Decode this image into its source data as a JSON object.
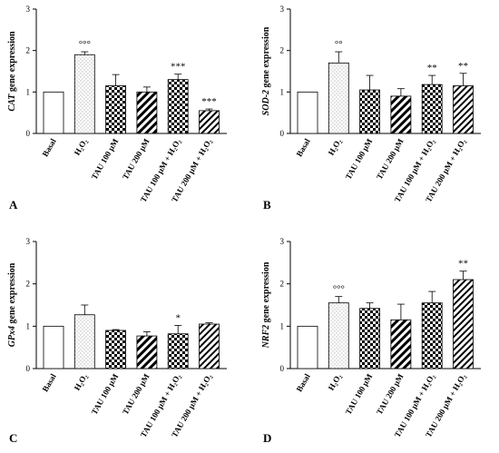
{
  "panels": [
    {
      "label": "A",
      "ylabel_gene": "CAT",
      "ylabel_rest": " gene expression",
      "significance": [
        "",
        "°°°",
        "",
        "",
        "***",
        "***"
      ]
    },
    {
      "label": "B",
      "ylabel_gene": "SOD-2",
      "ylabel_rest": " gene expression",
      "significance": [
        "",
        "°°",
        "",
        "",
        "**",
        "**"
      ]
    },
    {
      "label": "C",
      "ylabel_gene": "GPx4",
      "ylabel_rest": " gene expression",
      "significance": [
        "",
        "",
        "",
        "",
        "*",
        ""
      ]
    },
    {
      "label": "D",
      "ylabel_gene": "NRF2",
      "ylabel_rest": " gene expression",
      "significance": [
        "",
        "°°°",
        "",
        "",
        "",
        "**"
      ]
    }
  ],
  "chart_data": [
    {
      "type": "bar",
      "categories": [
        "Basal",
        "H₂O₂",
        "TAU 100 µM",
        "TAU 200 µM",
        "TAU 100 µM + H₂O₂",
        "TAU 200 µM + H₂O₂"
      ],
      "values": [
        1.0,
        1.9,
        1.15,
        1.0,
        1.3,
        0.55
      ],
      "errors": [
        0,
        0.07,
        0.27,
        0.12,
        0.13,
        0.04
      ],
      "ylabel": "CAT gene expression",
      "ylim": [
        0,
        3
      ],
      "yticks": [
        0,
        1,
        2,
        3
      ],
      "grid": false
    },
    {
      "type": "bar",
      "categories": [
        "Basal",
        "H₂O₂",
        "TAU 100 µM",
        "TAU 200 µM",
        "TAU 100 µM + H₂O₂",
        "TAU 200 µM + H₂O₂"
      ],
      "values": [
        1.0,
        1.7,
        1.05,
        0.9,
        1.18,
        1.15
      ],
      "errors": [
        0,
        0.27,
        0.35,
        0.18,
        0.22,
        0.3
      ],
      "ylabel": "SOD-2 gene expression",
      "ylim": [
        0,
        3
      ],
      "yticks": [
        0,
        1,
        2,
        3
      ],
      "grid": false
    },
    {
      "type": "bar",
      "categories": [
        "Basal",
        "H₂O₂",
        "TAU 100 µM",
        "TAU 200 µM",
        "TAU 100 µM + H₂O₂",
        "TAU 200 µM + H₂O₂"
      ],
      "values": [
        1.0,
        1.27,
        0.9,
        0.77,
        0.82,
        1.05
      ],
      "errors": [
        0,
        0.23,
        0.02,
        0.1,
        0.2,
        0.03
      ],
      "ylabel": "GPx4 gene expression",
      "ylim": [
        0,
        3
      ],
      "yticks": [
        0,
        1,
        2,
        3
      ],
      "grid": false
    },
    {
      "type": "bar",
      "categories": [
        "Basal",
        "H₂O₂",
        "TAU 100 µM",
        "TAU 200 µM",
        "TAU 100 µM + H₂O₂",
        "TAU 200 µM + H₂O₂"
      ],
      "values": [
        1.0,
        1.55,
        1.42,
        1.15,
        1.55,
        2.1
      ],
      "errors": [
        0,
        0.15,
        0.13,
        0.37,
        0.27,
        0.2
      ],
      "ylabel": "NRF2 gene expression",
      "ylim": [
        0,
        3
      ],
      "yticks": [
        0,
        1,
        2,
        3
      ],
      "grid": false
    }
  ]
}
